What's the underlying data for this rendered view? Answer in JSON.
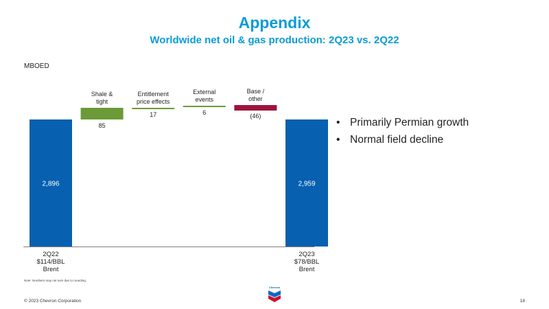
{
  "header": {
    "title": "Appendix",
    "subtitle": "Worldwide net oil & gas production: 2Q23 vs. 2Q22"
  },
  "unit_label": "MBOED",
  "bullets": [
    "Primarily Permian growth",
    "Normal field decline"
  ],
  "note": "Note: Numbers may not sum due to rounding.",
  "footer": {
    "copyright": "© 2023 Chevron Corporation",
    "page": "18"
  },
  "logo": {
    "text": "Chevron"
  },
  "colors": {
    "title": "#0a9bd6",
    "total": "#0760b0",
    "increase": "#6b9a37",
    "decrease": "#a0113e"
  },
  "chart_data": {
    "type": "bar",
    "subtype": "waterfall",
    "unit": "MBOED",
    "ylim": [
      0,
      3000
    ],
    "bars": [
      {
        "category": "2Q22",
        "sublabel": [
          "$114/BBL",
          "Brent"
        ],
        "kind": "total",
        "value": 2896,
        "label": "2,896"
      },
      {
        "category": "Shale & tight",
        "label_lines": [
          "Shale &",
          "tight"
        ],
        "kind": "delta",
        "value": 85,
        "label": "85"
      },
      {
        "category": "Entitlement price effects",
        "label_lines": [
          "Entitlement",
          "price effects"
        ],
        "kind": "delta",
        "value": 17,
        "label": "17"
      },
      {
        "category": "External events",
        "label_lines": [
          "External",
          "events"
        ],
        "kind": "delta",
        "value": 6,
        "label": "6"
      },
      {
        "category": "Base / other",
        "label_lines": [
          "Base /",
          "other"
        ],
        "kind": "delta",
        "value": -46,
        "label": "(46)"
      },
      {
        "category": "2Q23",
        "sublabel": [
          "$78/BBL",
          "Brent"
        ],
        "kind": "total",
        "value": 2959,
        "label": "2,959"
      }
    ]
  }
}
